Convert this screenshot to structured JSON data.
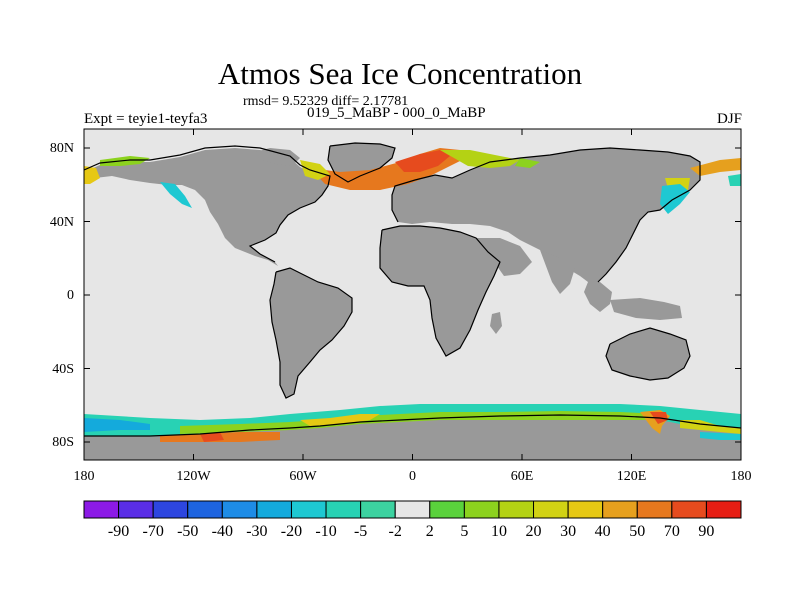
{
  "header": {
    "title": "Atmos Sea Ice Concentration",
    "stats": "rmsd= 9.52329 diff= 2.17781",
    "subtitle": "019_5_MaBP - 000_0_MaBP",
    "experiment": "Expt = teyie1-teyfa3",
    "season": "DJF"
  },
  "axes": {
    "x_ticks": [
      "180",
      "120W",
      "60W",
      "0",
      "60E",
      "120E",
      "180"
    ],
    "y_ticks": [
      "80N",
      "40N",
      "0",
      "40S",
      "80S"
    ]
  },
  "colors": {
    "ocean": "#e6e6e6",
    "land": "#999999",
    "coast": "#000000"
  },
  "colorbar": {
    "labels": [
      "-90",
      "-70",
      "-50",
      "-40",
      "-30",
      "-20",
      "-10",
      "-5",
      "-2",
      "2",
      "5",
      "10",
      "20",
      "30",
      "40",
      "50",
      "70",
      "90"
    ],
    "colors": [
      "#8c1ae6",
      "#5a2ee6",
      "#2d46e0",
      "#1e64e0",
      "#1e8ce6",
      "#14aadc",
      "#1ec8d2",
      "#28d2b4",
      "#3cd2a0",
      "#e6e6e6",
      "#5ad23c",
      "#8cd21e",
      "#b4d214",
      "#d2d214",
      "#e6c814",
      "#e6a01e",
      "#e6781e",
      "#e64b1e",
      "#e61e14"
    ]
  }
}
